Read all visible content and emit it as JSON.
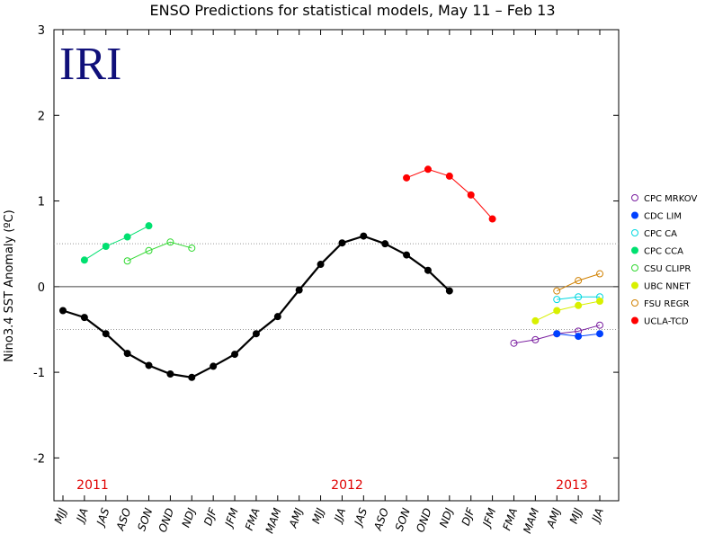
{
  "chart_data": {
    "type": "line",
    "title": "ENSO Predictions for statistical models, May 11 – Feb 13",
    "logo": "IRI",
    "y_label": "Nino3.4 SST Anomaly (ºC)",
    "annotations": [
      "2011",
      "2012",
      "2013"
    ],
    "categories": [
      "MJJ",
      "JJA",
      "JAS",
      "ASO",
      "SON",
      "OND",
      "NDJ",
      "DJF",
      "JFM",
      "FMA",
      "MAM",
      "AMJ",
      "MJJ",
      "JJA",
      "JAS",
      "ASO",
      "SON",
      "OND",
      "NDJ",
      "DJF",
      "JFM",
      "FMA",
      "MAM",
      "AMJ",
      "MJJ",
      "JJA"
    ],
    "ylim": [
      -2.5,
      3
    ],
    "yticks": [
      -2,
      -1,
      0,
      1,
      2,
      3
    ],
    "thresholds": [
      0.5,
      -0.5
    ],
    "observed": {
      "color": "#000000",
      "values": [
        -0.28,
        -0.36,
        -0.55,
        -0.78,
        -0.92,
        -1.02,
        -1.06,
        -0.93,
        -0.79,
        -0.55,
        -0.35,
        -0.04,
        0.26,
        0.51,
        0.59,
        0.5,
        0.37,
        0.19,
        -0.05,
        null,
        null,
        null,
        null,
        null,
        null,
        null
      ]
    },
    "series": [
      {
        "name": "CPC MRKOV",
        "color": "#7a1fa0",
        "marker": "open",
        "values": [
          null,
          null,
          null,
          null,
          null,
          null,
          null,
          null,
          null,
          null,
          null,
          null,
          null,
          null,
          null,
          null,
          null,
          null,
          null,
          null,
          null,
          -0.66,
          -0.62,
          -0.55,
          -0.52,
          -0.45
        ]
      },
      {
        "name": "CDC LIM",
        "color": "#0040ff",
        "marker": "filled",
        "values": [
          null,
          null,
          null,
          null,
          null,
          null,
          null,
          null,
          null,
          null,
          null,
          null,
          null,
          null,
          null,
          null,
          null,
          null,
          null,
          null,
          null,
          null,
          null,
          -0.55,
          -0.58,
          -0.55
        ]
      },
      {
        "name": "CPC CA",
        "color": "#00d8e0",
        "marker": "open",
        "values": [
          null,
          null,
          null,
          null,
          null,
          null,
          null,
          null,
          null,
          null,
          null,
          null,
          null,
          null,
          null,
          null,
          null,
          null,
          null,
          null,
          null,
          null,
          null,
          -0.15,
          -0.12,
          -0.12
        ]
      },
      {
        "name": "CPC CCA",
        "color": "#00e070",
        "marker": "filled",
        "values": [
          null,
          0.31,
          0.47,
          0.58,
          0.71,
          null,
          null,
          null,
          null,
          null,
          null,
          null,
          null,
          null,
          null,
          null,
          null,
          null,
          null,
          null,
          null,
          null,
          null,
          null,
          null,
          null
        ]
      },
      {
        "name": "CSU CLIPR",
        "color": "#30d830",
        "marker": "open",
        "values": [
          null,
          null,
          null,
          0.3,
          0.42,
          0.52,
          0.45,
          null,
          null,
          null,
          null,
          null,
          null,
          null,
          null,
          null,
          null,
          null,
          null,
          null,
          null,
          null,
          null,
          null,
          null,
          null
        ]
      },
      {
        "name": "UBC NNET",
        "color": "#d8f000",
        "marker": "filled",
        "values": [
          null,
          null,
          null,
          null,
          null,
          null,
          null,
          null,
          null,
          null,
          null,
          null,
          null,
          null,
          null,
          null,
          null,
          null,
          null,
          null,
          null,
          null,
          -0.4,
          -0.28,
          -0.22,
          -0.17
        ]
      },
      {
        "name": "FSU REGR",
        "color": "#d08000",
        "marker": "open",
        "values": [
          null,
          null,
          null,
          null,
          null,
          null,
          null,
          null,
          null,
          null,
          null,
          null,
          null,
          null,
          null,
          null,
          null,
          null,
          null,
          null,
          null,
          null,
          null,
          -0.05,
          0.07,
          0.15
        ]
      },
      {
        "name": "UCLA-TCD",
        "color": "#ff0000",
        "marker": "filled",
        "values": [
          null,
          null,
          null,
          null,
          null,
          null,
          null,
          null,
          null,
          null,
          null,
          null,
          null,
          null,
          null,
          null,
          1.27,
          1.37,
          1.29,
          1.07,
          0.79,
          null,
          null,
          null,
          null,
          null
        ]
      }
    ]
  }
}
